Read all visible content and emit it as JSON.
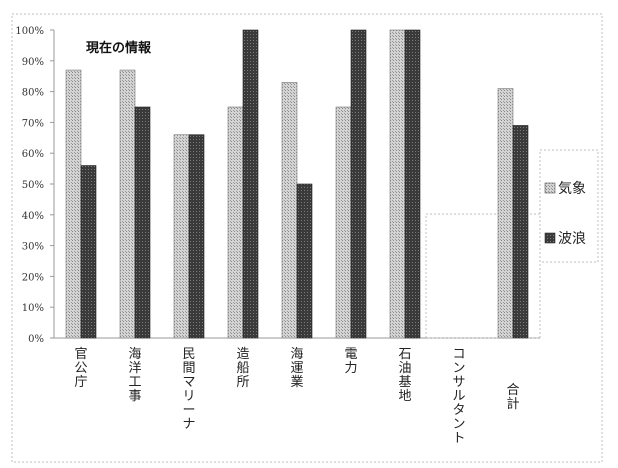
{
  "chart_data": {
    "type": "bar",
    "title": "現在の情報",
    "categories": [
      "官公庁",
      "海洋工事",
      "民間マリーナ",
      "造船所",
      "海運業",
      "電力",
      "石油基地",
      "コンサルタント",
      "合計"
    ],
    "series": [
      {
        "name": "気象",
        "values": [
          87,
          87,
          66,
          75,
          83,
          75,
          100,
          0,
          81
        ],
        "color": "#c8c8c8"
      },
      {
        "name": "波浪",
        "values": [
          56,
          75,
          66,
          100,
          50,
          100,
          100,
          0,
          69
        ],
        "color": "#4a4a4a"
      }
    ],
    "yticks": [
      "0%",
      "10%",
      "20%",
      "30%",
      "40%",
      "50%",
      "60%",
      "70%",
      "80%",
      "90%",
      "100%"
    ],
    "ylim": [
      0,
      100
    ],
    "legend_position": "right",
    "grid": false
  }
}
